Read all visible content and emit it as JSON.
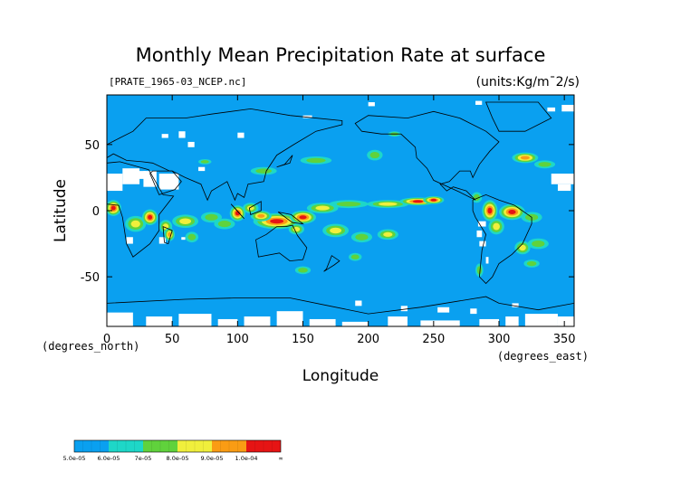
{
  "chart_data": {
    "type": "heatmap",
    "title": "Monthly Mean Precipitation Rate at surface",
    "file_label": "[PRATE_1965-03_NCEP.nc]",
    "units": "(units:Kg/m¯2/s)",
    "xlabel": "Longitude",
    "ylabel": "Latitude",
    "x_unit": "(degrees_east)",
    "y_unit": "(degrees_north)",
    "xlim": [
      0,
      357.5
    ],
    "ylim": [
      -87.5,
      87.5
    ],
    "x_ticks": [
      0,
      50,
      100,
      150,
      200,
      250,
      300,
      350
    ],
    "y_ticks": [
      -50,
      0,
      50
    ],
    "colorbar": {
      "colors": [
        "#0aa0f0",
        "#1ed7c8",
        "#60d23c",
        "#f0ef3c",
        "#fa9c14",
        "#e61414"
      ],
      "labels": [
        "5.0e-05",
        "6.0e-05",
        "7e-05",
        "8.0e-05",
        "9.0e-05",
        "1.0e-04",
        "∞"
      ]
    },
    "background_color": "#0aa0f0",
    "missing_color": "#ffffff"
  }
}
